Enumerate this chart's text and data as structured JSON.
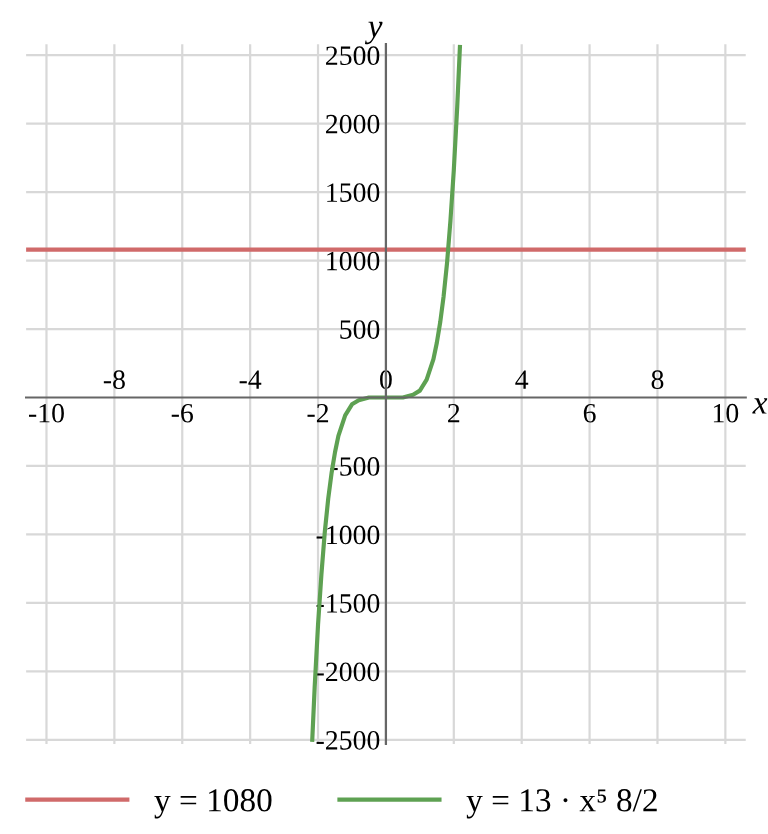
{
  "chart_data": {
    "type": "line",
    "xlabel": "x",
    "ylabel": "y",
    "xlim": [
      -10.6,
      10.6
    ],
    "ylim": [
      -2530,
      2580
    ],
    "xticks": [
      -10,
      -6,
      -2,
      2,
      6,
      10
    ],
    "x2lim": [
      -10.6,
      10.6
    ],
    "x2ticks": [
      -8,
      -4,
      0,
      4,
      8
    ],
    "yticks": [
      -2500,
      -2000,
      -1500,
      -1000,
      -500,
      500,
      1000,
      1500,
      2000,
      2500
    ],
    "grid": true,
    "legend": "bottom",
    "marker": "none",
    "line_style": "solid",
    "ref_lines": [
      {
        "axis": "y",
        "value": 1080,
        "label": "y = 1080",
        "color": "#d06a6a"
      }
    ],
    "series": [
      {
        "name": "y = 13 · x⁵ 8/2",
        "color": "#5ea152",
        "x": [
          -2.17,
          -2.1,
          -2.0,
          -1.9,
          -1.8,
          -1.7,
          -1.6,
          -1.5,
          -1.4,
          -1.2,
          -1.0,
          -0.8,
          -0.5,
          0,
          0.5,
          0.8,
          1.0,
          1.2,
          1.4,
          1.5,
          1.6,
          1.7,
          1.8,
          1.9,
          2.0,
          2.1,
          2.18
        ],
        "values": [
          -2500,
          -2120,
          -1660,
          -1290,
          -980,
          -740,
          -550,
          -400,
          -280,
          -130,
          -50,
          -20,
          0,
          0,
          0,
          20,
          50,
          130,
          280,
          400,
          550,
          740,
          980,
          1290,
          1660,
          2120,
          2560
        ]
      }
    ]
  }
}
